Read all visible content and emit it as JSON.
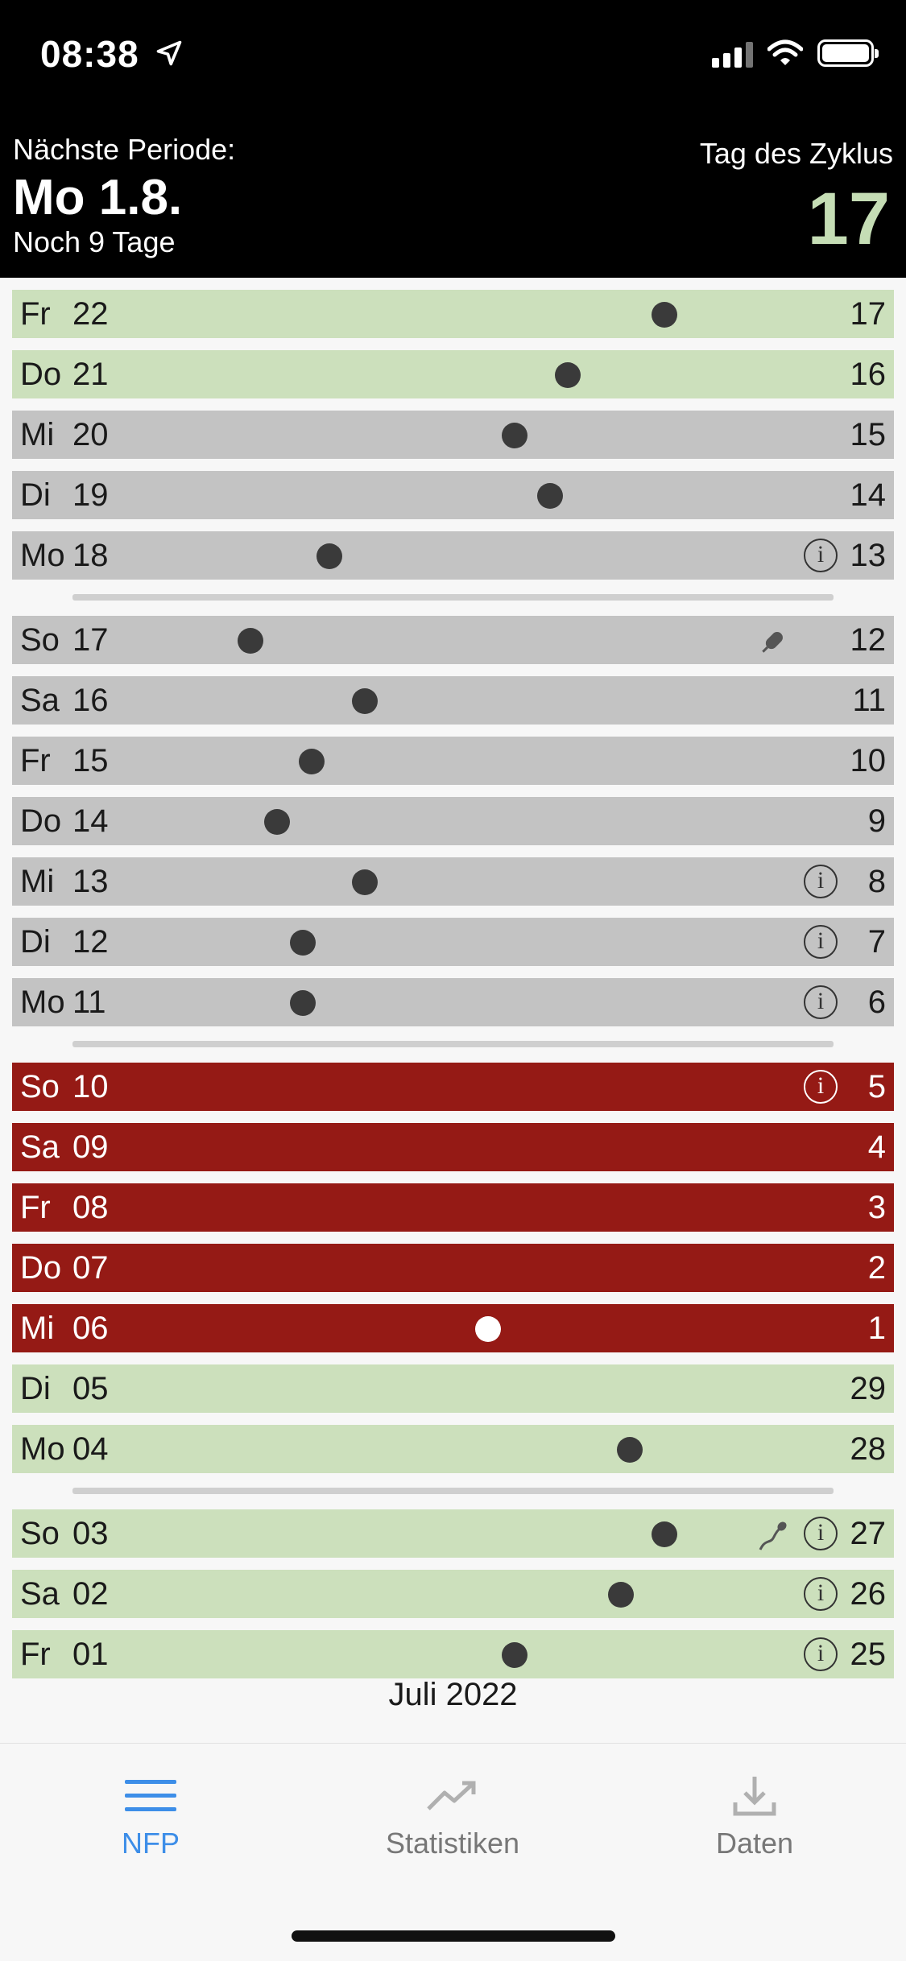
{
  "status": {
    "time": "08:38"
  },
  "header": {
    "next_label": "Nächste Periode:",
    "next_date": "Mo 1.8.",
    "next_remaining": "Noch 9 Tage",
    "cycle_label": "Tag des Zyklus",
    "cycle_day": "17"
  },
  "rows": [
    {
      "weekday": "Fr",
      "date": "22",
      "cycle_day": "17",
      "color": "green",
      "temp_fraction": 0.74
    },
    {
      "weekday": "Do",
      "date": "21",
      "cycle_day": "16",
      "color": "green",
      "temp_fraction": 0.63
    },
    {
      "weekday": "Mi",
      "date": "20",
      "cycle_day": "15",
      "color": "gray",
      "temp_fraction": 0.57
    },
    {
      "weekday": "Di",
      "date": "19",
      "cycle_day": "14",
      "color": "gray",
      "temp_fraction": 0.61
    },
    {
      "weekday": "Mo",
      "date": "18",
      "cycle_day": "13",
      "color": "gray",
      "temp_fraction": 0.36,
      "note": "ⓘ"
    },
    {
      "weekday": "So",
      "date": "17",
      "cycle_day": "12",
      "color": "gray",
      "temp_fraction": 0.27,
      "symbol": "tampon-icon"
    },
    {
      "weekday": "Sa",
      "date": "16",
      "cycle_day": "11",
      "color": "gray",
      "temp_fraction": 0.4
    },
    {
      "weekday": "Fr",
      "date": "15",
      "cycle_day": "10",
      "color": "gray",
      "temp_fraction": 0.34
    },
    {
      "weekday": "Do",
      "date": "14",
      "cycle_day": "9",
      "color": "gray",
      "temp_fraction": 0.3
    },
    {
      "weekday": "Mi",
      "date": "13",
      "cycle_day": "8",
      "color": "gray",
      "temp_fraction": 0.4,
      "note": "ⓘ"
    },
    {
      "weekday": "Di",
      "date": "12",
      "cycle_day": "7",
      "color": "gray",
      "temp_fraction": 0.33,
      "note": "ⓘ"
    },
    {
      "weekday": "Mo",
      "date": "11",
      "cycle_day": "6",
      "color": "gray",
      "temp_fraction": 0.33,
      "note": "ⓘ"
    },
    {
      "weekday": "So",
      "date": "10",
      "cycle_day": "5",
      "color": "red",
      "note": "ⓘ"
    },
    {
      "weekday": "Sa",
      "date": "09",
      "cycle_day": "4",
      "color": "red"
    },
    {
      "weekday": "Fr",
      "date": "08",
      "cycle_day": "3",
      "color": "red"
    },
    {
      "weekday": "Do",
      "date": "07",
      "cycle_day": "2",
      "color": "red"
    },
    {
      "weekday": "Mi",
      "date": "06",
      "cycle_day": "1",
      "color": "red",
      "temp_fraction": 0.54
    },
    {
      "weekday": "Di",
      "date": "05",
      "cycle_day": "29",
      "color": "green"
    },
    {
      "weekday": "Mo",
      "date": "04",
      "cycle_day": "28",
      "color": "green",
      "temp_fraction": 0.7
    },
    {
      "weekday": "So",
      "date": "03",
      "cycle_day": "27",
      "color": "green",
      "temp_fraction": 0.74,
      "note": "ⓘ",
      "symbol": "sperm-icon"
    },
    {
      "weekday": "Sa",
      "date": "02",
      "cycle_day": "26",
      "color": "green",
      "temp_fraction": 0.69,
      "note": "ⓘ"
    },
    {
      "weekday": "Fr",
      "date": "01",
      "cycle_day": "25",
      "color": "green",
      "temp_fraction": 0.57,
      "note": "ⓘ"
    }
  ],
  "month_label": "Juli 2022",
  "tabs": [
    {
      "label": "NFP",
      "icon": "menu-icon",
      "active": true
    },
    {
      "label": "Statistiken",
      "icon": "trend-icon",
      "active": false
    },
    {
      "label": "Daten",
      "icon": "download-icon",
      "active": false
    }
  ],
  "colors": {
    "green": "#cce0bc",
    "gray": "#c3c3c3",
    "red": "#951a15",
    "accent": "#3d8ee8"
  }
}
